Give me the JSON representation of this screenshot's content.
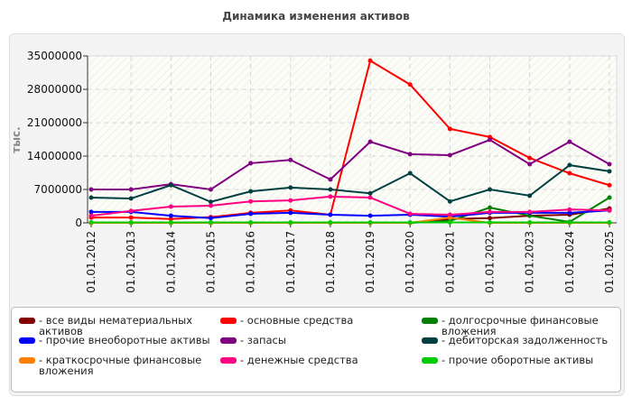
{
  "chart_data": {
    "type": "line",
    "title": "Динамика изменения активов",
    "ylabel": "тыс.",
    "ylim": [
      0,
      35000000
    ],
    "yticks": [
      "0",
      "7000000",
      "14000000",
      "21000000",
      "28000000",
      "35000000"
    ],
    "grid": true,
    "legend_placement": "bottom",
    "categories": [
      "01.01.2012",
      "01.01.2013",
      "01.01.2014",
      "01.01.2015",
      "01.01.2016",
      "01.01.2017",
      "01.01.2018",
      "01.01.2019",
      "01.01.2020",
      "01.01.2021",
      "01.01.2022",
      "01.01.2023",
      "01.01.2024",
      "01.01.2025"
    ],
    "series": [
      {
        "name": "- все виды нематериальных активов",
        "color": "#800000",
        "values": [
          0,
          0,
          0,
          0,
          0,
          0,
          0,
          0,
          0,
          800000,
          1000000,
          1500000,
          1700000,
          3000000
        ]
      },
      {
        "name": "- основные средства",
        "color": "#ff0000",
        "values": [
          1100000,
          1100000,
          800000,
          1200000,
          2100000,
          2600000,
          1700000,
          34000000,
          29000000,
          19700000,
          18000000,
          13600000,
          10400000,
          7900000
        ]
      },
      {
        "name": "- долгосрочные финансовые вложения",
        "color": "#008000",
        "values": [
          0,
          0,
          0,
          0,
          0,
          0,
          0,
          0,
          0,
          400000,
          3200000,
          1500000,
          200000,
          5300000
        ]
      },
      {
        "name": "- прочие внеоборотные активы",
        "color": "#0000ff",
        "values": [
          2300000,
          2300000,
          1500000,
          1000000,
          1900000,
          2100000,
          1700000,
          1500000,
          1700000,
          1300000,
          2100000,
          2100000,
          2100000,
          2600000
        ]
      },
      {
        "name": "- запасы",
        "color": "#800080",
        "values": [
          7000000,
          7000000,
          8100000,
          7000000,
          12500000,
          13200000,
          9100000,
          17000000,
          14400000,
          14200000,
          17400000,
          12300000,
          17000000,
          12300000
        ]
      },
      {
        "name": "- дебиторская задолженность",
        "color": "#004040",
        "values": [
          5300000,
          5100000,
          7900000,
          4400000,
          6600000,
          7400000,
          7000000,
          6200000,
          10400000,
          4500000,
          7000000,
          5700000,
          12100000,
          10800000
        ]
      },
      {
        "name": "- краткосрочные финансовые вложения",
        "color": "#ff8000",
        "values": [
          0,
          0,
          0,
          0,
          0,
          0,
          0,
          0,
          0,
          1100000,
          0,
          0,
          0,
          0
        ]
      },
      {
        "name": "- денежные средства",
        "color": "#ff0080",
        "values": [
          1500000,
          2500000,
          3400000,
          3600000,
          4500000,
          4700000,
          5500000,
          5300000,
          1900000,
          1700000,
          2300000,
          2300000,
          2800000,
          2600000
        ]
      },
      {
        "name": "- прочие оборотные активы",
        "color": "#00cc00",
        "values": [
          100000,
          100000,
          100000,
          100000,
          100000,
          100000,
          100000,
          100000,
          100000,
          100000,
          100000,
          100000,
          100000,
          100000
        ]
      }
    ]
  }
}
